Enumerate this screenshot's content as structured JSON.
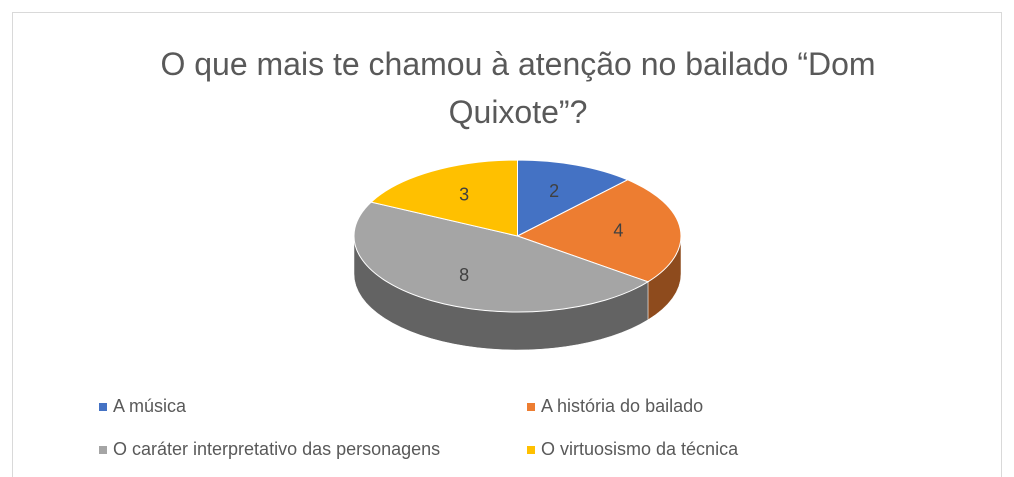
{
  "chart_data": {
    "type": "pie",
    "title": "O que mais te chamou à atenção no bailado “Dom Quixote”?",
    "categories": [
      "A música",
      "A história do bailado",
      "O caráter interpretativo das personagens",
      "O virtuosismo da técnica"
    ],
    "values": [
      2,
      4,
      8,
      3
    ],
    "colors": [
      "#4472c4",
      "#ed7d31",
      "#a5a5a5",
      "#ffc000"
    ],
    "legend": "bottom"
  }
}
